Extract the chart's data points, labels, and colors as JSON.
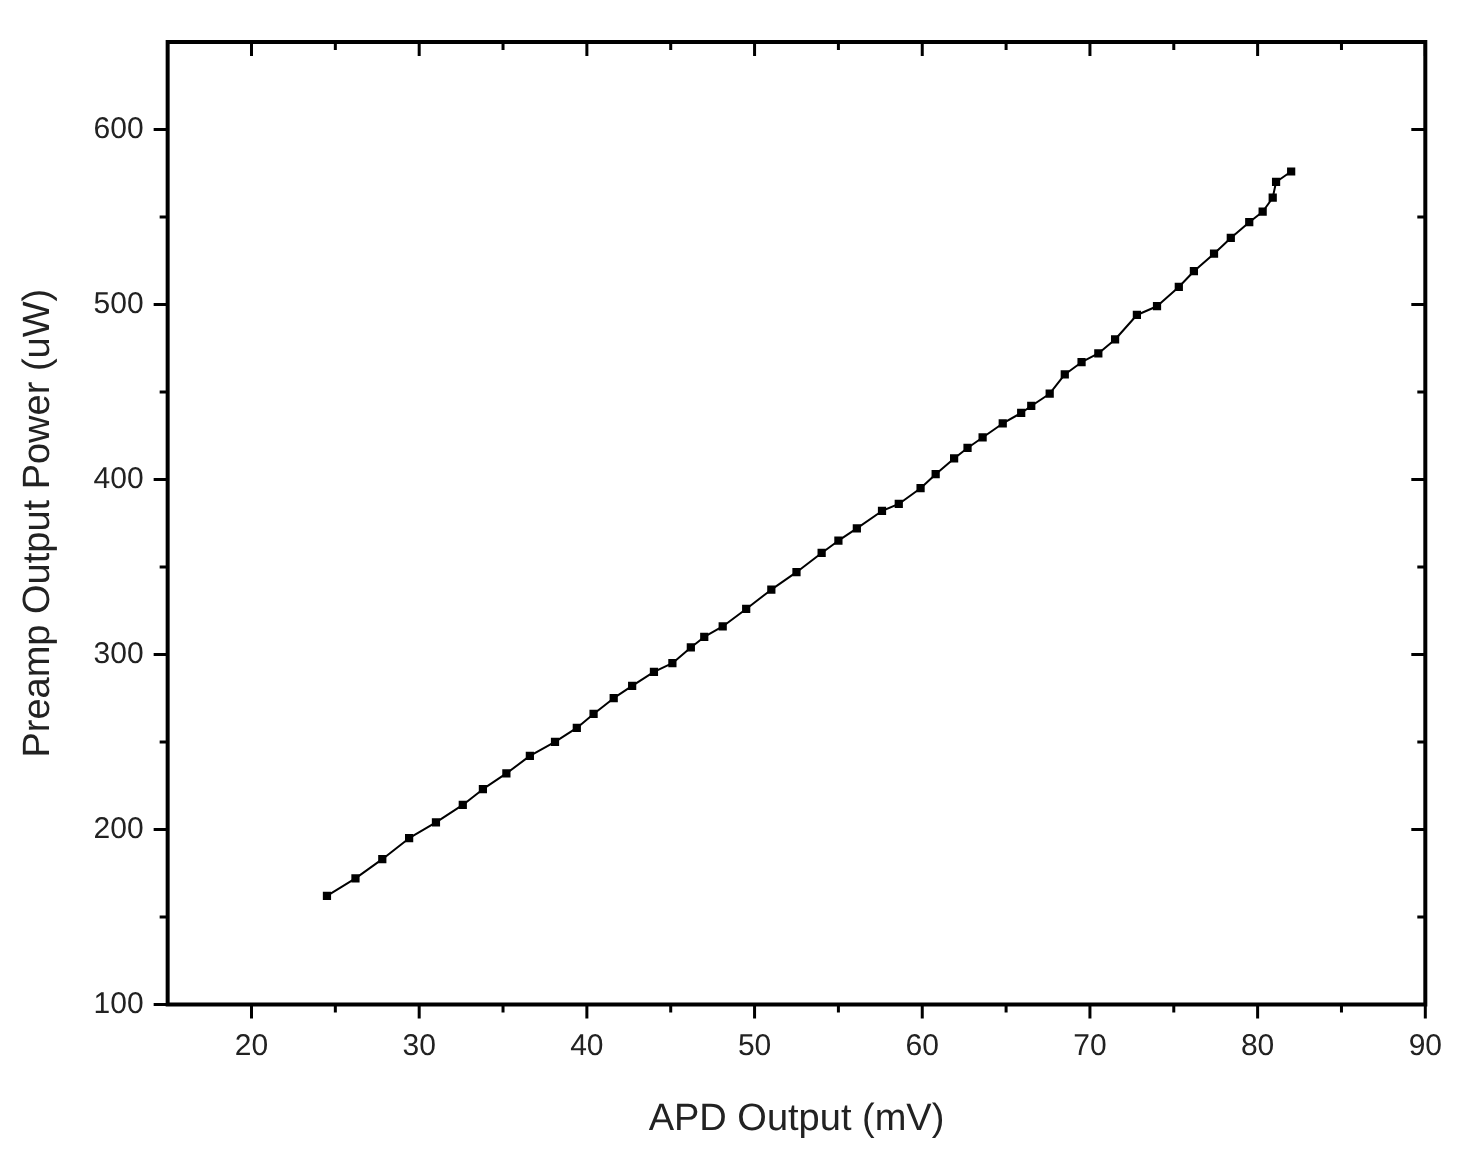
{
  "chart_data": {
    "type": "line",
    "xlabel": "APD Output (mV)",
    "ylabel": "Preamp Output Power (uW)",
    "xlim": [
      15,
      90
    ],
    "ylim": [
      100,
      650
    ],
    "xticks": [
      20,
      {
        "value": 25,
        "label": null
      },
      30,
      {
        "value": 35,
        "label": null
      },
      40,
      {
        "value": 45,
        "label": null
      },
      50,
      {
        "value": 55,
        "label": null
      },
      60,
      {
        "value": 65,
        "label": null
      },
      70,
      {
        "value": 75,
        "label": null
      },
      80,
      {
        "value": 85,
        "label": null
      },
      90
    ],
    "yticks": [
      100,
      {
        "value": 150,
        "label": null
      },
      200,
      {
        "value": 250,
        "label": null
      },
      300,
      {
        "value": 350,
        "label": null
      },
      400,
      {
        "value": 450,
        "label": null
      },
      500,
      {
        "value": 550,
        "label": null
      },
      600
    ],
    "marker": "square",
    "line_style": "solid",
    "grid": false,
    "legend": false,
    "series": [
      {
        "color": "#000000",
        "x": [
          24.5,
          26.2,
          27.8,
          29.4,
          31.0,
          32.6,
          33.8,
          35.2,
          36.6,
          38.1,
          39.4,
          40.4,
          41.6,
          42.7,
          44.0,
          45.1,
          46.2,
          47.0,
          48.1,
          49.5,
          51.0,
          52.5,
          54.0,
          55.0,
          56.1,
          57.6,
          58.6,
          59.9,
          60.8,
          61.9,
          62.7,
          63.6,
          64.8,
          65.9,
          66.5,
          67.6,
          68.5,
          69.5,
          70.5,
          71.5,
          72.8,
          74.0,
          75.3,
          76.2,
          77.4,
          78.4,
          79.5,
          80.3,
          80.9,
          81.1,
          82.0
        ],
        "values": [
          162,
          172,
          183,
          195,
          204,
          214,
          223,
          232,
          242,
          250,
          258,
          266,
          275,
          282,
          290,
          295,
          304,
          310,
          316,
          326,
          337,
          347,
          358,
          365,
          372,
          382,
          386,
          395,
          403,
          412,
          418,
          424,
          432,
          438,
          442,
          449,
          460,
          467,
          472,
          480,
          494,
          499,
          510,
          519,
          529,
          538,
          547,
          553,
          561,
          570,
          576
        ]
      }
    ]
  }
}
